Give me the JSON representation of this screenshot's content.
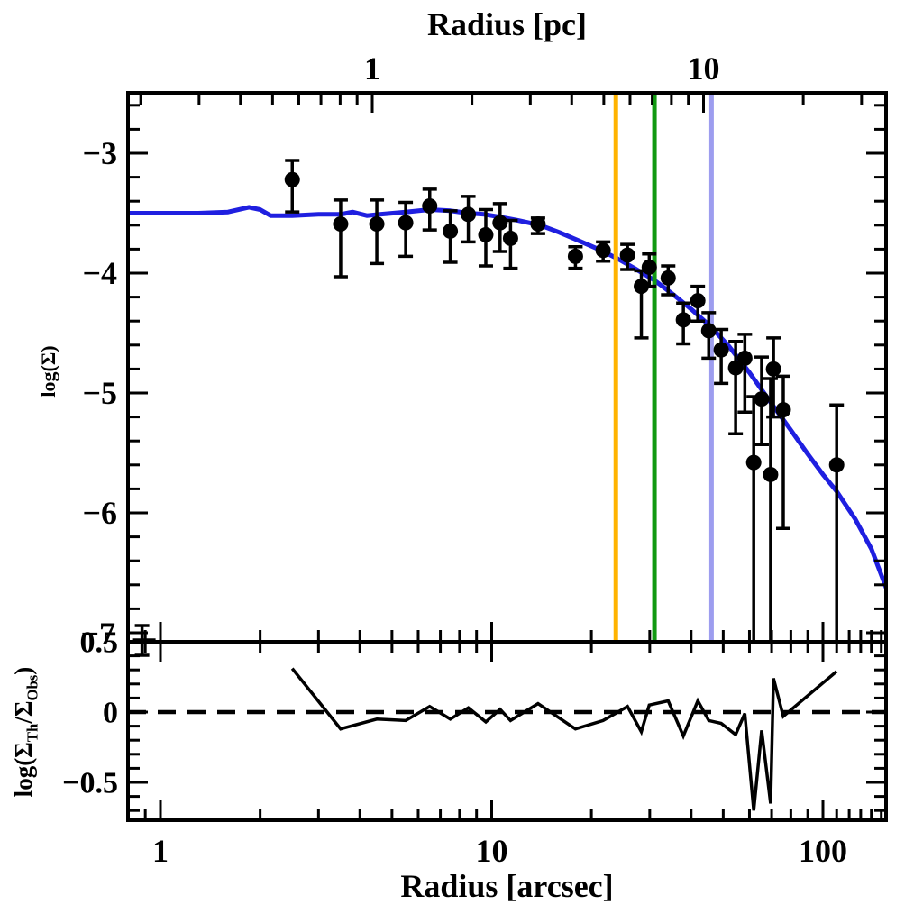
{
  "figure": {
    "background": "#ffffff",
    "frame_color": "#000000"
  },
  "chart_data": {
    "type": "scatter",
    "title": "",
    "x_axis": {
      "label": "Radius [arcsec]",
      "scale": "log",
      "range": [
        0.8,
        154
      ],
      "major_ticks": [
        1,
        10,
        100
      ],
      "major_tick_labels": [
        "1",
        "10",
        "100"
      ],
      "minor_ticks": [
        0.9,
        2,
        3,
        4,
        5,
        6,
        7,
        8,
        9,
        20,
        30,
        40,
        50,
        60,
        70,
        80,
        90,
        110,
        120,
        130,
        140,
        150
      ]
    },
    "top_axis": {
      "label": "Radius [pc]",
      "scale": "log",
      "range": [
        0.18,
        35
      ],
      "major_ticks": [
        1,
        10
      ],
      "major_tick_labels": [
        "1",
        "10"
      ],
      "minor_ticks": [
        0.2,
        0.3,
        0.4,
        0.5,
        0.6,
        0.7,
        0.8,
        0.9,
        2,
        3,
        4,
        5,
        6,
        7,
        8,
        9,
        20,
        30
      ]
    },
    "main_panel": {
      "y_axis": {
        "label": "log(Σ)",
        "range": [
          -7.08,
          -2.5
        ],
        "major_ticks": [
          -3,
          -4,
          -5,
          -6,
          -7
        ],
        "major_tick_labels": [
          "−3",
          "−4",
          "−5",
          "−6"
        ],
        "boundary_tick_label": "−7",
        "minor_ticks": [
          -2.6,
          -2.8,
          -3.2,
          -3.4,
          -3.6,
          -3.8,
          -4.2,
          -4.4,
          -4.6,
          -4.8,
          -5.2,
          -5.4,
          -5.6,
          -5.8,
          -6.2,
          -6.4,
          -6.6,
          -6.8
        ]
      },
      "points_color": "#000000",
      "points": [
        [
          2.5,
          -3.22,
          0.16,
          0.27
        ],
        [
          3.5,
          -3.59,
          0.2,
          0.44
        ],
        [
          4.5,
          -3.59,
          0.2,
          0.33
        ],
        [
          5.5,
          -3.58,
          0.17,
          0.28
        ],
        [
          6.5,
          -3.44,
          0.14,
          0.2
        ],
        [
          7.5,
          -3.65,
          0.17,
          0.26
        ],
        [
          8.5,
          -3.51,
          0.15,
          0.23
        ],
        [
          9.6,
          -3.68,
          0.21,
          0.26
        ],
        [
          10.6,
          -3.58,
          0.16,
          0.24
        ],
        [
          11.4,
          -3.71,
          0.15,
          0.25
        ],
        [
          13.8,
          -3.59,
          0.05,
          0.08
        ],
        [
          17.9,
          -3.86,
          0.08,
          0.1
        ],
        [
          21.7,
          -3.81,
          0.07,
          0.09
        ],
        [
          25.7,
          -3.85,
          0.09,
          0.12
        ],
        [
          28.3,
          -4.11,
          0.13,
          0.43
        ],
        [
          29.9,
          -3.95,
          0.11,
          0.16
        ],
        [
          34.1,
          -4.04,
          0.1,
          0.14
        ],
        [
          37.9,
          -4.39,
          0.14,
          0.2
        ],
        [
          41.9,
          -4.23,
          0.12,
          0.17
        ],
        [
          45.2,
          -4.48,
          0.15,
          0.23
        ],
        [
          49.3,
          -4.64,
          0.17,
          0.28
        ],
        [
          54.5,
          -4.79,
          0.22,
          0.55
        ],
        [
          58.1,
          -4.71,
          0.2,
          0.45
        ],
        [
          61.8,
          -5.58,
          0.55,
          1.6
        ],
        [
          65.3,
          -5.05,
          0.35,
          0.38
        ],
        [
          69.5,
          -5.68,
          0.8,
          1.5
        ],
        [
          70.9,
          -4.8,
          0.26,
          0.4
        ],
        [
          75.9,
          -5.14,
          0.28,
          0.99
        ],
        [
          110,
          -5.6,
          0.5,
          1.5
        ]
      ],
      "model_curve": {
        "color": "#1f1fe0",
        "points": [
          [
            0.8,
            -3.5
          ],
          [
            1.0,
            -3.5
          ],
          [
            1.3,
            -3.5
          ],
          [
            1.6,
            -3.49
          ],
          [
            1.85,
            -3.45
          ],
          [
            2.0,
            -3.47
          ],
          [
            2.15,
            -3.52
          ],
          [
            2.5,
            -3.52
          ],
          [
            3.0,
            -3.51
          ],
          [
            3.5,
            -3.51
          ],
          [
            3.8,
            -3.49
          ],
          [
            4.2,
            -3.52
          ],
          [
            4.6,
            -3.51
          ],
          [
            5.5,
            -3.49
          ],
          [
            6.5,
            -3.47
          ],
          [
            7.5,
            -3.48
          ],
          [
            8.5,
            -3.5
          ],
          [
            9.5,
            -3.51
          ],
          [
            10.5,
            -3.53
          ],
          [
            12,
            -3.56
          ],
          [
            14,
            -3.6
          ],
          [
            16,
            -3.66
          ],
          [
            18,
            -3.72
          ],
          [
            21,
            -3.8
          ],
          [
            24,
            -3.88
          ],
          [
            27,
            -3.96
          ],
          [
            31,
            -4.06
          ],
          [
            35,
            -4.17
          ],
          [
            40,
            -4.3
          ],
          [
            46,
            -4.45
          ],
          [
            52,
            -4.61
          ],
          [
            60,
            -4.83
          ],
          [
            70,
            -5.09
          ],
          [
            80,
            -5.31
          ],
          [
            90,
            -5.51
          ],
          [
            100,
            -5.68
          ],
          [
            110,
            -5.82
          ],
          [
            125,
            -6.05
          ],
          [
            140,
            -6.3
          ],
          [
            155,
            -6.62
          ],
          [
            160,
            -6.72
          ]
        ]
      },
      "vertical_lines": [
        {
          "name": "orange-line",
          "r": 23.7,
          "color": "#ffb300"
        },
        {
          "name": "green-line",
          "r": 31.0,
          "color": "#119911"
        },
        {
          "name": "blue-line",
          "r": 46.1,
          "color": "#9d9def"
        }
      ]
    },
    "residual_panel": {
      "y_axis": {
        "label_plain": "log(Σ_Th/Σ_Obs)",
        "label_html": "log(Σ<sub>Th</sub>/Σ<sub>Obs</sub>)",
        "range": [
          -0.77,
          0.5
        ],
        "major_ticks": [
          0.5,
          0,
          -0.5
        ],
        "major_tick_labels": [
          "0.5",
          "0",
          "−0.5"
        ],
        "minor_ticks": [
          0.4,
          0.3,
          0.2,
          0.1,
          -0.1,
          -0.2,
          -0.3,
          -0.4,
          -0.6,
          -0.7
        ]
      },
      "zero_line": {
        "value": 0,
        "style": "dashed"
      },
      "line_color": "#000000",
      "line": [
        [
          2.5,
          0.31
        ],
        [
          3.5,
          -0.12
        ],
        [
          4.5,
          -0.05
        ],
        [
          5.5,
          -0.06
        ],
        [
          6.5,
          0.04
        ],
        [
          7.5,
          -0.05
        ],
        [
          8.5,
          0.03
        ],
        [
          9.6,
          -0.07
        ],
        [
          10.6,
          0.02
        ],
        [
          11.4,
          -0.06
        ],
        [
          13.8,
          0.06
        ],
        [
          17.9,
          -0.12
        ],
        [
          21.7,
          -0.06
        ],
        [
          25.7,
          0.04
        ],
        [
          28.3,
          -0.14
        ],
        [
          29.9,
          0.05
        ],
        [
          34.1,
          0.08
        ],
        [
          37.9,
          -0.17
        ],
        [
          41.9,
          0.08
        ],
        [
          45.2,
          -0.06
        ],
        [
          49.3,
          -0.08
        ],
        [
          54.5,
          -0.16
        ],
        [
          58.1,
          -0.01
        ],
        [
          61.8,
          -0.7
        ],
        [
          65.3,
          -0.13
        ],
        [
          69.5,
          -0.65
        ],
        [
          70.9,
          0.24
        ],
        [
          75.9,
          -0.03
        ],
        [
          110,
          0.29
        ]
      ],
      "edge_marker": {
        "r": 0.88,
        "value": 0.51
      }
    }
  }
}
